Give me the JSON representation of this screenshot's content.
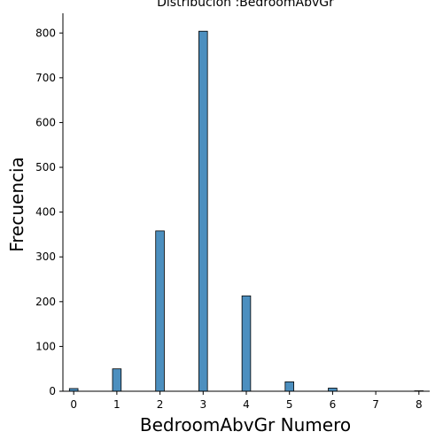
{
  "chart_data": {
    "type": "bar",
    "title": "Distribución :BedroomAbvGr",
    "xlabel": "BedroomAbvGr Numero",
    "ylabel": "Frecuencia",
    "x": [
      0,
      1,
      2,
      3,
      4,
      5,
      6,
      8
    ],
    "values": [
      6,
      50,
      358,
      804,
      213,
      21,
      7,
      1
    ],
    "bin_width": 0.2,
    "xlim": [
      -0.25,
      8.25
    ],
    "ylim": [
      0,
      844
    ],
    "xticks": [
      "0",
      "1",
      "2",
      "3",
      "4",
      "5",
      "6",
      "7",
      "8"
    ],
    "yticks": [
      "0",
      "100",
      "200",
      "300",
      "400",
      "500",
      "600",
      "700",
      "800"
    ],
    "bar_color": "#4c8fbf",
    "bar_edge_color": "#000000",
    "grid": false,
    "legend": "none"
  }
}
